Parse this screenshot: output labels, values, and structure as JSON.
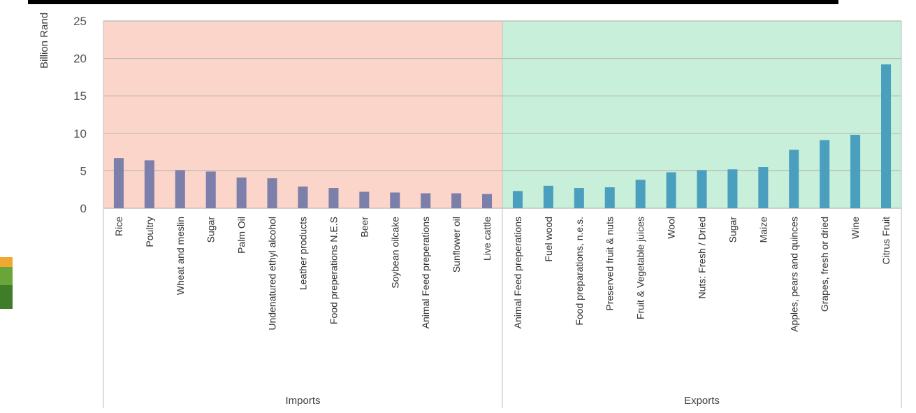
{
  "chart_data": {
    "type": "bar",
    "ylabel": "Billion Rand",
    "ylim": [
      0,
      25
    ],
    "yticks": [
      0,
      5,
      10,
      15,
      20,
      25
    ],
    "grid": true,
    "legend": "none",
    "groups": [
      {
        "label": "Imports",
        "background": "#fcd5ca",
        "bar_color": "#7b7fa9",
        "categories": [
          "Rice",
          "Poultry",
          "Wheat and meslin",
          "Sugar",
          "Palm Oil",
          "Undenatured ethyl alcohol",
          "Leather products",
          "Food preperations N.E.S",
          "Beer",
          "Soybean oilcake",
          "Animal Feed preperations",
          "Sunflower oil",
          "Live cattle"
        ],
        "values": [
          6.7,
          6.4,
          5.1,
          4.9,
          4.1,
          4.0,
          2.9,
          2.7,
          2.2,
          2.1,
          2.0,
          2.0,
          1.9
        ]
      },
      {
        "label": "Exports",
        "background": "#c8efd9",
        "bar_color": "#4a9fbf",
        "categories": [
          "Animal Feed preperations",
          "Fuel wood",
          "Food preparations, n.e.s.",
          "Preserved fruit & nuts",
          "Fruit & Vegetable juices",
          "Wool",
          "Nuts: Fresh / Dried",
          "Sugar",
          "Maize",
          "Apples, pears and quinces",
          "Grapes, fresh or dried",
          "Wine",
          "Citrus Fruit"
        ],
        "values": [
          2.3,
          3.0,
          2.7,
          2.8,
          3.8,
          4.8,
          5.1,
          5.2,
          5.5,
          7.8,
          9.1,
          9.8,
          19.2
        ]
      }
    ]
  }
}
